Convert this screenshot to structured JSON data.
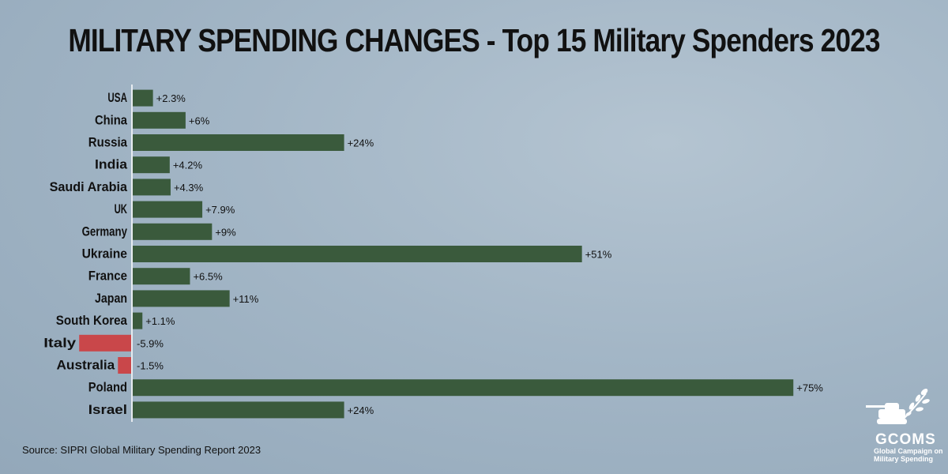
{
  "chart_data": {
    "type": "bar",
    "orientation": "horizontal",
    "title": "MILITARY SPENDING CHANGES - Top 15 Military Spenders 2023",
    "categories": [
      "USA",
      "China",
      "Russia",
      "India",
      "Saudi Arabia",
      "UK",
      "Germany",
      "Ukraine",
      "France",
      "Japan",
      "South Korea",
      "Italy",
      "Australia",
      "Poland",
      "Israel"
    ],
    "values": [
      2.3,
      6,
      24,
      4.2,
      4.3,
      7.9,
      9,
      51,
      6.5,
      11,
      1.1,
      -5.9,
      -1.5,
      75,
      24
    ],
    "labels": [
      "+2.3%",
      "+6%",
      "+24%",
      "+4.2%",
      "+4.3%",
      "+7.9%",
      "+9%",
      "+51%",
      "+6.5%",
      "+11%",
      "+1.1%",
      "-5.9%",
      "-1.5%",
      "+75%",
      "+24%"
    ],
    "colors": {
      "positive": "#3a5a3c",
      "negative": "#c9474a"
    },
    "xlabel": "",
    "ylabel": "",
    "grid": false,
    "legend": "none"
  },
  "source": "Source: SIPRI Global Military Spending Report 2023",
  "logo": {
    "abbr": "GCOMS",
    "subtitle": "Global Campaign on Military Spending"
  }
}
